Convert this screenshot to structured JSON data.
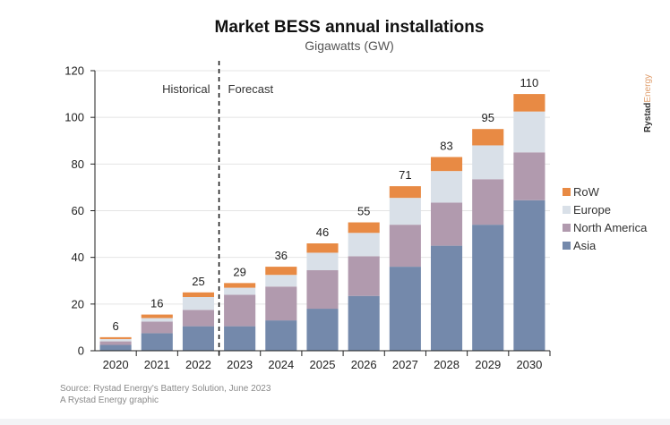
{
  "chart_data": {
    "type": "bar",
    "stacked": true,
    "title": "Market BESS annual installations",
    "subtitle": "Gigawatts (GW)",
    "xlabel": "",
    "ylabel": "",
    "ylim": [
      0,
      120
    ],
    "yticks": [
      0,
      20,
      40,
      60,
      80,
      100,
      120
    ],
    "grid": true,
    "categories": [
      "2020",
      "2021",
      "2022",
      "2023",
      "2024",
      "2025",
      "2026",
      "2027",
      "2028",
      "2029",
      "2030"
    ],
    "series": [
      {
        "name": "Asia",
        "color": "#7489ab",
        "values": [
          2.5,
          7.5,
          10.5,
          10.5,
          13,
          18,
          23.5,
          36,
          45,
          54,
          64.5
        ]
      },
      {
        "name": "North America",
        "color": "#b19aae",
        "values": [
          1.5,
          5,
          7,
          13.5,
          14.5,
          16.5,
          17,
          18,
          18.5,
          19.5,
          20.5
        ]
      },
      {
        "name": "Europe",
        "color": "#d9e0e8",
        "values": [
          1,
          1.5,
          5.5,
          3,
          5,
          7.5,
          10,
          11.5,
          13.5,
          14.5,
          17.5
        ]
      },
      {
        "name": "RoW",
        "color": "#e88a44",
        "values": [
          0.8,
          1.5,
          2,
          2,
          3.5,
          4,
          4.5,
          5,
          6,
          7,
          7.5
        ]
      }
    ],
    "totals": [
      "6",
      "16",
      "25",
      "29",
      "36",
      "46",
      "55",
      "71",
      "83",
      "95",
      "110"
    ],
    "legend": {
      "placement": "right",
      "entries": [
        "RoW",
        "Europe",
        "North America",
        "Asia"
      ]
    },
    "annotations": {
      "divider_between": [
        "2022",
        "2023"
      ],
      "left_label": "Historical",
      "right_label": "Forecast"
    }
  },
  "brand": {
    "part1": "Rystad",
    "part2": "Energy"
  },
  "source": {
    "line1": "Source: Rystad Energy's Battery Solution, June 2023",
    "line2": "A Rystad Energy graphic"
  }
}
